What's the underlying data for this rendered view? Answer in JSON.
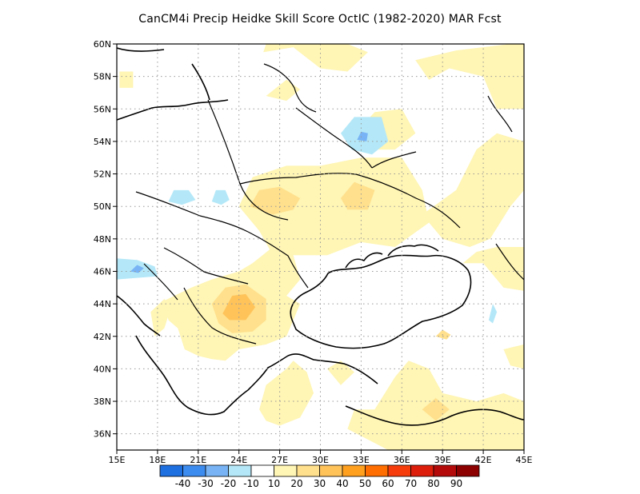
{
  "chart_data": {
    "type": "heatmap",
    "title": "CanCM4i Precip Heidke Skill Score OctIC (1982-2020) MAR Fcst",
    "x_ticks": [
      "15E",
      "18E",
      "21E",
      "24E",
      "27E",
      "30E",
      "33E",
      "36E",
      "39E",
      "42E",
      "45E"
    ],
    "y_ticks": [
      "60N",
      "58N",
      "56N",
      "54N",
      "52N",
      "50N",
      "48N",
      "46N",
      "44N",
      "42N",
      "40N",
      "38N",
      "36N"
    ],
    "xlim": [
      15,
      45
    ],
    "ylim": [
      35,
      60
    ],
    "grid": true,
    "colorbar": {
      "labels": [
        "-40",
        "-30",
        "-20",
        "-10",
        "10",
        "20",
        "30",
        "40",
        "50",
        "60",
        "70",
        "80",
        "90"
      ],
      "colors": [
        "#1e6fe0",
        "#3c8cf0",
        "#78b4f5",
        "#b4e8f8",
        "#ffffff",
        "#fff5b4",
        "#ffe08c",
        "#ffc35a",
        "#ffa01e",
        "#ff6e00",
        "#f53c0a",
        "#dc1e0a",
        "#b40a0a",
        "#8c0000"
      ]
    },
    "regions": [
      {
        "category": "10-20",
        "polygon": [
          [
            15.2,
            57.3
          ],
          [
            16.2,
            57.3
          ],
          [
            16.2,
            58.3
          ],
          [
            15.2,
            58.3
          ]
        ]
      },
      {
        "category": "10-20",
        "polygon": [
          [
            25.8,
            59.5
          ],
          [
            28,
            59.8
          ],
          [
            30,
            58.5
          ],
          [
            32,
            58.3
          ],
          [
            33.5,
            59.5
          ],
          [
            32,
            60
          ],
          [
            26,
            60
          ]
        ]
      },
      {
        "category": "10-20",
        "polygon": [
          [
            37,
            59
          ],
          [
            40,
            59.6
          ],
          [
            44,
            60
          ],
          [
            45,
            60
          ],
          [
            45,
            56
          ],
          [
            43,
            56
          ],
          [
            42,
            58
          ],
          [
            39.5,
            58.5
          ],
          [
            38,
            57.8
          ]
        ]
      },
      {
        "category": "10-20",
        "polygon": [
          [
            26,
            56.8
          ],
          [
            27.5,
            56.5
          ],
          [
            28.5,
            57.2
          ],
          [
            27.5,
            57.8
          ]
        ]
      },
      {
        "category": "10-20",
        "polygon": [
          [
            32.5,
            54.5
          ],
          [
            34,
            55.8
          ],
          [
            36,
            56
          ],
          [
            37,
            54.5
          ],
          [
            35.5,
            53.5
          ],
          [
            33.5,
            53.5
          ]
        ]
      },
      {
        "category": "10-20",
        "polygon": [
          [
            24,
            50
          ],
          [
            25,
            51.8
          ],
          [
            27.5,
            52.5
          ],
          [
            30,
            52.5
          ],
          [
            33,
            53
          ],
          [
            36,
            53
          ],
          [
            37.5,
            51
          ],
          [
            38,
            49
          ],
          [
            35.5,
            47.5
          ],
          [
            33,
            47.8
          ],
          [
            30.5,
            47
          ],
          [
            28.5,
            47
          ],
          [
            26.5,
            47
          ],
          [
            25.5,
            48.5
          ]
        ]
      },
      {
        "category": "10-20",
        "polygon": [
          [
            37.5,
            49.5
          ],
          [
            39,
            48
          ],
          [
            41,
            47.5
          ],
          [
            42.5,
            48
          ],
          [
            44,
            50
          ],
          [
            45,
            51
          ],
          [
            45,
            54
          ],
          [
            43,
            54.5
          ],
          [
            41.5,
            53.5
          ],
          [
            40,
            51
          ]
        ]
      },
      {
        "category": "10-20",
        "polygon": [
          [
            40.5,
            46.5
          ],
          [
            42,
            46.5
          ],
          [
            43.5,
            45
          ],
          [
            45,
            44.8
          ],
          [
            45,
            47.5
          ],
          [
            43,
            47.5
          ],
          [
            41.5,
            47.2
          ]
        ]
      },
      {
        "category": "10-20",
        "polygon": [
          [
            18.5,
            44.2
          ],
          [
            20.5,
            45
          ],
          [
            22,
            45.5
          ],
          [
            24,
            46
          ],
          [
            25,
            46.5
          ],
          [
            26.5,
            47.5
          ],
          [
            28,
            47
          ],
          [
            28.5,
            45.5
          ],
          [
            27.5,
            44.5
          ],
          [
            28.5,
            44
          ],
          [
            28,
            43
          ],
          [
            27.5,
            42
          ],
          [
            26,
            41.5
          ],
          [
            24,
            41.2
          ],
          [
            23,
            40.5
          ],
          [
            22,
            40.6
          ],
          [
            21,
            40.8
          ],
          [
            20,
            41.2
          ],
          [
            19.5,
            42.5
          ],
          [
            18.8,
            43
          ]
        ]
      },
      {
        "category": "10-20",
        "polygon": [
          [
            17.8,
            42
          ],
          [
            18.5,
            42.5
          ],
          [
            19,
            43.8
          ],
          [
            18.5,
            44.3
          ],
          [
            17.5,
            43.5
          ]
        ]
      },
      {
        "category": "10-20",
        "polygon": [
          [
            25.5,
            37.5
          ],
          [
            26,
            39
          ],
          [
            27.5,
            40
          ],
          [
            28,
            40.5
          ],
          [
            29,
            39.8
          ],
          [
            29.5,
            38.5
          ],
          [
            28.5,
            37
          ],
          [
            27,
            36.5
          ],
          [
            26,
            36.8
          ]
        ]
      },
      {
        "category": "10-20",
        "polygon": [
          [
            30.5,
            40
          ],
          [
            31.5,
            39
          ],
          [
            32.5,
            39.8
          ],
          [
            31.5,
            40.5
          ]
        ]
      },
      {
        "category": "10-20",
        "polygon": [
          [
            35.5,
            39.5
          ],
          [
            36.5,
            40.5
          ],
          [
            38,
            40
          ],
          [
            39,
            38.5
          ],
          [
            41.5,
            38
          ],
          [
            43.5,
            38.5
          ],
          [
            45,
            38
          ],
          [
            45,
            35
          ],
          [
            35,
            35
          ],
          [
            32,
            36.3
          ],
          [
            32.5,
            37.5
          ],
          [
            34,
            37.5
          ]
        ]
      },
      {
        "category": "10-20",
        "polygon": [
          [
            43.5,
            41.2
          ],
          [
            45,
            41.5
          ],
          [
            45,
            40
          ],
          [
            44,
            40.2
          ]
        ]
      },
      {
        "category": "20-30",
        "polygon": [
          [
            24.8,
            50
          ],
          [
            25.5,
            51
          ],
          [
            27,
            51.2
          ],
          [
            28.5,
            50.5
          ],
          [
            28,
            49.8
          ],
          [
            26.5,
            49.5
          ]
        ]
      },
      {
        "category": "20-30",
        "polygon": [
          [
            31.5,
            50.5
          ],
          [
            32.5,
            51.5
          ],
          [
            34,
            51
          ],
          [
            33.5,
            49.8
          ],
          [
            32,
            49.8
          ]
        ]
      },
      {
        "category": "20-30",
        "polygon": [
          [
            38.5,
            42
          ],
          [
            39,
            42.4
          ],
          [
            39.6,
            42.1
          ],
          [
            39.3,
            41.8
          ]
        ]
      },
      {
        "category": "20-30",
        "polygon": [
          [
            22,
            44
          ],
          [
            23,
            45
          ],
          [
            24.5,
            45.2
          ],
          [
            26,
            44.3
          ],
          [
            26,
            43
          ],
          [
            25,
            42.3
          ],
          [
            23.5,
            42.2
          ],
          [
            22.5,
            42.8
          ]
        ]
      },
      {
        "category": "20-30",
        "polygon": [
          [
            37.5,
            37.5
          ],
          [
            38.5,
            38.2
          ],
          [
            39.5,
            37.5
          ],
          [
            38.5,
            36.8
          ]
        ]
      },
      {
        "category": "30-40",
        "polygon": [
          [
            22.8,
            43.4
          ],
          [
            23.5,
            44.5
          ],
          [
            24.5,
            44.6
          ],
          [
            25.2,
            43.8
          ],
          [
            24.5,
            43
          ],
          [
            23.3,
            43
          ]
        ]
      },
      {
        "category": "-20--10",
        "polygon": [
          [
            31.5,
            54.5
          ],
          [
            32.5,
            55.5
          ],
          [
            34.5,
            55.5
          ],
          [
            35,
            54
          ],
          [
            33.8,
            53.2
          ],
          [
            32.3,
            53.5
          ]
        ]
      },
      {
        "category": "-20--10",
        "polygon": [
          [
            18.8,
            50.3
          ],
          [
            19.2,
            51
          ],
          [
            20.3,
            51
          ],
          [
            20.8,
            50.4
          ],
          [
            19.8,
            50.1
          ]
        ]
      },
      {
        "category": "-20--10",
        "polygon": [
          [
            22,
            50.3
          ],
          [
            22.3,
            51
          ],
          [
            23,
            51
          ],
          [
            23.3,
            50.4
          ],
          [
            22.7,
            50.1
          ]
        ]
      },
      {
        "category": "-20--10",
        "polygon": [
          [
            15,
            45.5
          ],
          [
            15,
            46.8
          ],
          [
            16.5,
            46.7
          ],
          [
            17.8,
            46.3
          ],
          [
            18,
            45.7
          ],
          [
            16.5,
            45.6
          ]
        ]
      },
      {
        "category": "-20--10",
        "polygon": [
          [
            42.4,
            43
          ],
          [
            42.7,
            44
          ],
          [
            43,
            43.5
          ],
          [
            42.7,
            42.8
          ]
        ]
      },
      {
        "category": "-30--20",
        "polygon": [
          [
            32.7,
            54.1
          ],
          [
            33,
            54.6
          ],
          [
            33.5,
            54.5
          ],
          [
            33.4,
            54
          ]
        ]
      },
      {
        "category": "-30--20",
        "polygon": [
          [
            16,
            46
          ],
          [
            16.5,
            46.4
          ],
          [
            17,
            46.2
          ],
          [
            16.6,
            45.9
          ]
        ]
      }
    ]
  }
}
